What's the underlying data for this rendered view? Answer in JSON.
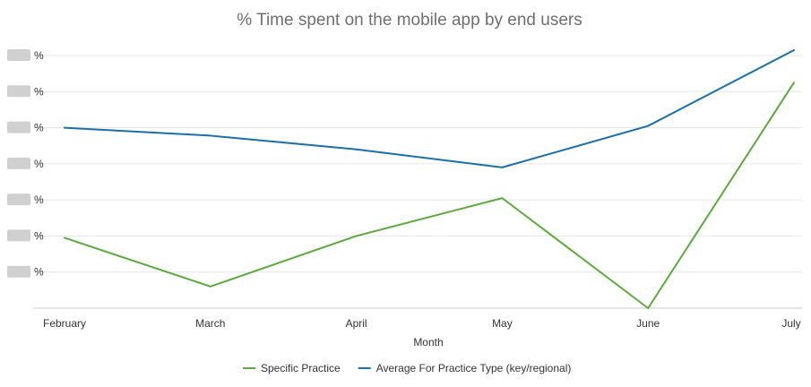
{
  "chart_data": {
    "type": "line",
    "title": "% Time spent on the mobile app by end users",
    "xlabel": "Month",
    "ylabel": "",
    "categories": [
      "February",
      "March",
      "April",
      "May",
      "June",
      "July"
    ],
    "y_tick_suffix": "%",
    "y_tick_count": 7,
    "y_tick_values_obscured": true,
    "ylim": [
      0,
      7
    ],
    "grid": true,
    "legend_position": "bottom",
    "series": [
      {
        "name": "Specific Practice",
        "color": "#5aab3c",
        "values": [
          1.95,
          0.6,
          2.0,
          3.05,
          0.0,
          6.25
        ]
      },
      {
        "name": "Average For Practice Type (key/regional)",
        "color": "#1a6fa8",
        "values": [
          5.0,
          4.78,
          4.4,
          3.9,
          5.05,
          7.15
        ]
      }
    ]
  }
}
